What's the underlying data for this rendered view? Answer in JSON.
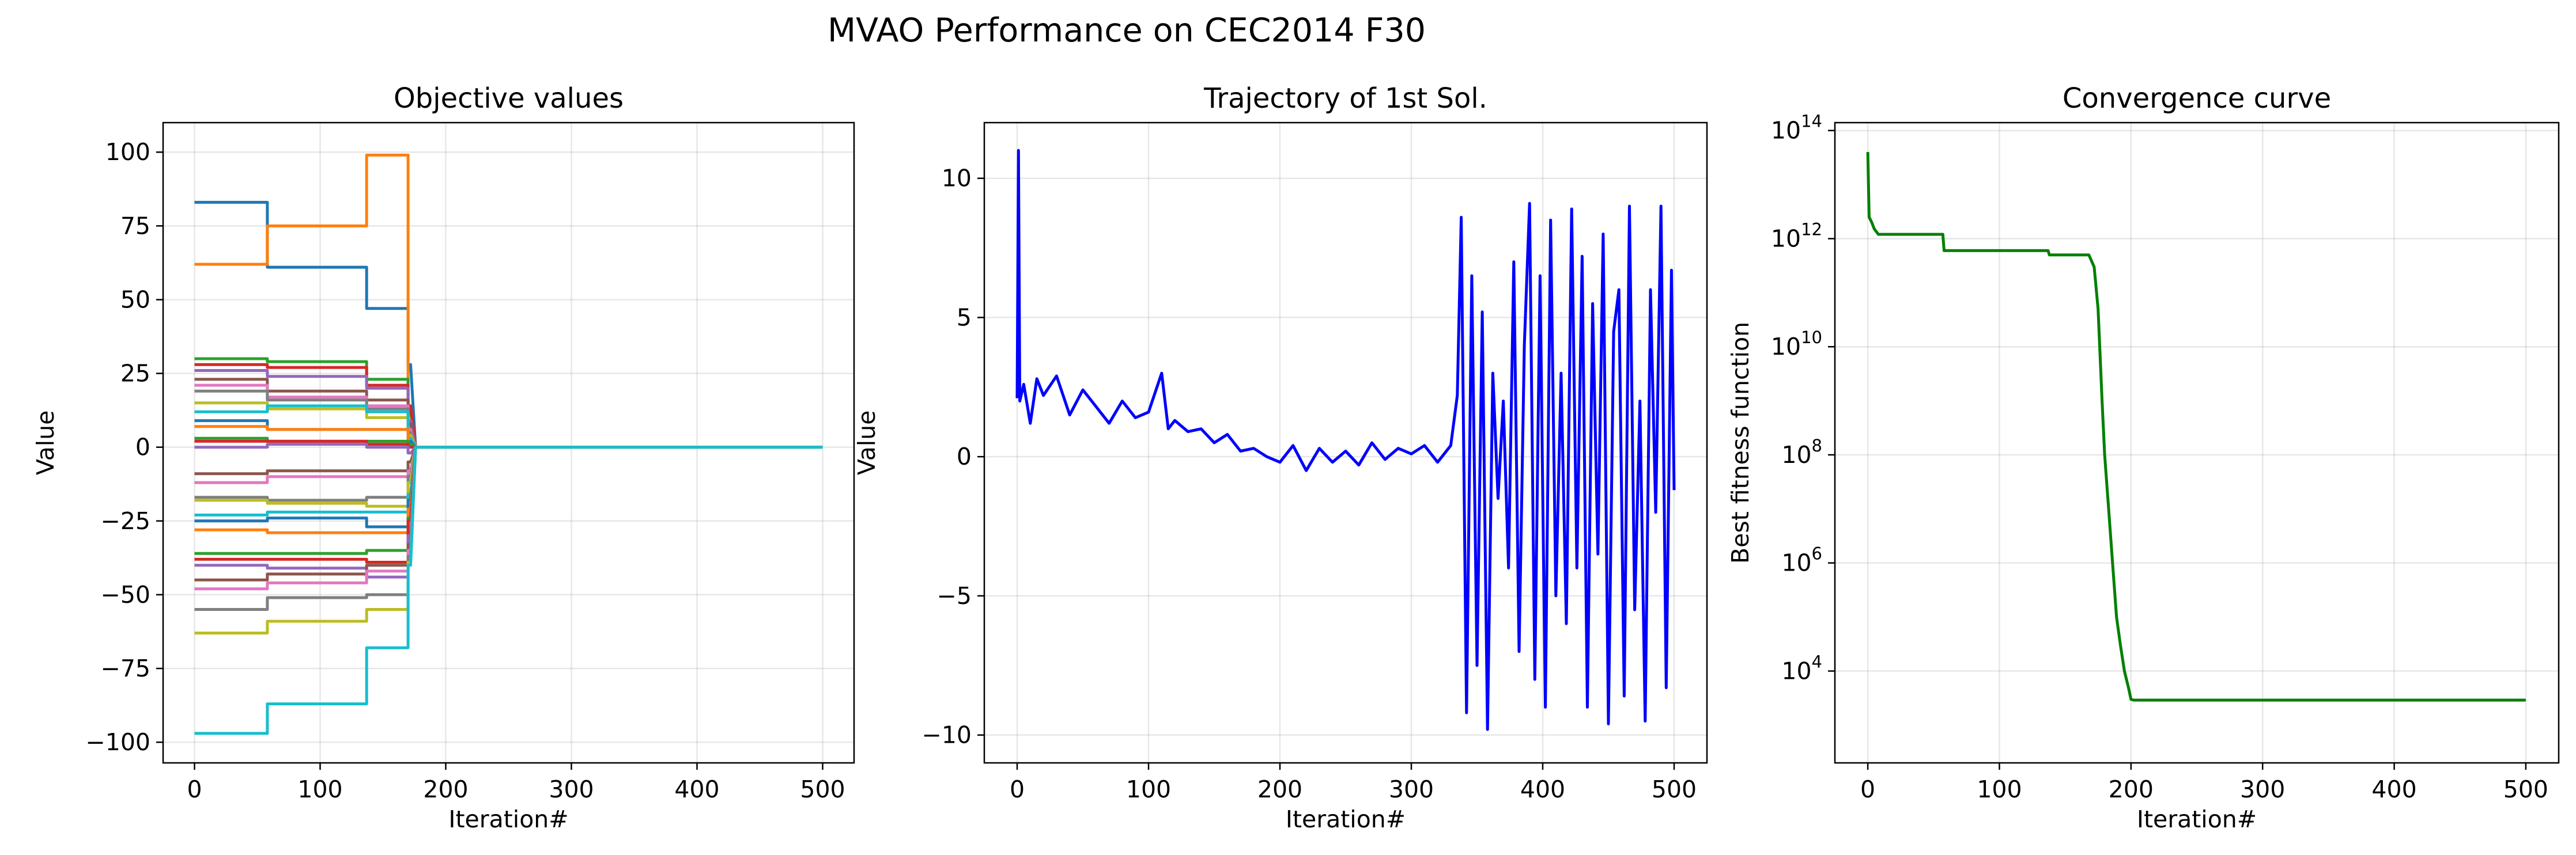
{
  "suptitle": "MVAO Performance on CEC2014 F30",
  "colors": {
    "tab10": [
      "#1f77b4",
      "#ff7f0e",
      "#2ca02c",
      "#d62728",
      "#9467bd",
      "#8c564b",
      "#e377c2",
      "#7f7f7f",
      "#bcbd22",
      "#17becf"
    ],
    "trajectory": "#0000ff",
    "convergence": "#008000"
  },
  "chart_data": [
    {
      "type": "line",
      "title": "Objective values",
      "xlabel": "Iteration#",
      "ylabel": "Value",
      "xlim": [
        -25,
        525
      ],
      "ylim": [
        -107,
        110
      ],
      "xticks": [
        0,
        100,
        200,
        300,
        400,
        500
      ],
      "yticks": [
        -100,
        -75,
        -50,
        -25,
        0,
        25,
        50,
        75,
        100
      ],
      "ytick_labels": [
        "−100",
        "−75",
        "−50",
        "−25",
        "0",
        "25",
        "50",
        "75",
        "100"
      ],
      "grid": true,
      "series_count": 30,
      "step_points": [
        0,
        58,
        137,
        170
      ],
      "final_value": 0,
      "series": [
        {
          "values": [
            83,
            61,
            47,
            28
          ]
        },
        {
          "values": [
            62,
            75,
            99,
            13
          ]
        },
        {
          "values": [
            30,
            29,
            23,
            12
          ]
        },
        {
          "values": [
            28,
            27,
            21,
            14
          ]
        },
        {
          "values": [
            26,
            24,
            20,
            9
          ]
        },
        {
          "values": [
            23,
            19,
            16,
            8
          ]
        },
        {
          "values": [
            21,
            17,
            14,
            6
          ]
        },
        {
          "values": [
            19,
            16,
            13,
            5
          ]
        },
        {
          "values": [
            15,
            13,
            10,
            4
          ]
        },
        {
          "values": [
            12,
            14,
            12,
            3
          ]
        },
        {
          "values": [
            9,
            6,
            6,
            2
          ]
        },
        {
          "values": [
            7,
            6,
            6,
            1
          ]
        },
        {
          "values": [
            3,
            2,
            2,
            1
          ]
        },
        {
          "values": [
            2,
            2,
            1,
            0
          ]
        },
        {
          "values": [
            0,
            1,
            0,
            -2
          ]
        },
        {
          "values": [
            -9,
            -8,
            -8,
            -5
          ]
        },
        {
          "values": [
            -12,
            -10,
            -10,
            -8
          ]
        },
        {
          "values": [
            -17,
            -18,
            -17,
            -10
          ]
        },
        {
          "values": [
            -18,
            -19,
            -20,
            -12
          ]
        },
        {
          "values": [
            -23,
            -22,
            -22,
            -16
          ]
        },
        {
          "values": [
            -25,
            -24,
            -27,
            -18
          ]
        },
        {
          "values": [
            -28,
            -29,
            -29,
            -21
          ]
        },
        {
          "values": [
            -36,
            -36,
            -35,
            -24
          ]
        },
        {
          "values": [
            -38,
            -38,
            -39,
            -25
          ]
        },
        {
          "values": [
            -40,
            -41,
            -44,
            -30
          ]
        },
        {
          "values": [
            -45,
            -43,
            -40,
            -33
          ]
        },
        {
          "values": [
            -48,
            -46,
            -42,
            -35
          ]
        },
        {
          "values": [
            -55,
            -51,
            -50,
            -37
          ]
        },
        {
          "values": [
            -63,
            -59,
            -55,
            -39
          ]
        },
        {
          "values": [
            -97,
            -87,
            -68,
            -40
          ]
        }
      ]
    },
    {
      "type": "line",
      "title": "Trajectory of 1st Sol.",
      "xlabel": "Iteration#",
      "ylabel": "Value",
      "xlim": [
        -25,
        525
      ],
      "ylim": [
        -11,
        12
      ],
      "xticks": [
        0,
        100,
        200,
        300,
        400,
        500
      ],
      "yticks": [
        -10,
        -5,
        0,
        5,
        10
      ],
      "ytick_labels": [
        "−10",
        "−5",
        "0",
        "5",
        "10"
      ],
      "grid": true,
      "x": [
        0,
        1,
        2,
        5,
        10,
        15,
        20,
        30,
        40,
        50,
        60,
        70,
        80,
        90,
        100,
        110,
        115,
        120,
        130,
        140,
        150,
        160,
        170,
        180,
        190,
        200,
        210,
        220,
        230,
        240,
        250,
        260,
        270,
        280,
        290,
        300,
        310,
        320,
        330,
        335,
        338,
        342,
        346,
        350,
        354,
        358,
        362,
        366,
        370,
        374,
        378,
        382,
        386,
        390,
        394,
        398,
        402,
        406,
        410,
        414,
        418,
        422,
        426,
        430,
        434,
        438,
        442,
        446,
        450,
        454,
        458,
        462,
        466,
        470,
        474,
        478,
        482,
        486,
        490,
        494,
        498,
        500
      ],
      "y": [
        2.1,
        11.0,
        2.0,
        2.6,
        1.2,
        2.8,
        2.2,
        2.9,
        1.5,
        2.4,
        1.8,
        1.2,
        2.0,
        1.4,
        1.6,
        3.0,
        1.0,
        1.3,
        0.9,
        1.0,
        0.5,
        0.8,
        0.2,
        0.3,
        0.0,
        -0.2,
        0.4,
        -0.5,
        0.3,
        -0.2,
        0.2,
        -0.3,
        0.5,
        -0.1,
        0.3,
        0.1,
        0.4,
        -0.2,
        0.4,
        2.2,
        8.6,
        -9.2,
        6.5,
        -7.5,
        5.2,
        -9.8,
        3.0,
        -1.5,
        2.0,
        -4.0,
        7.0,
        -7.0,
        4.0,
        9.1,
        -8.0,
        6.5,
        -9.0,
        8.5,
        -5.0,
        3.0,
        -6.0,
        8.9,
        -4.0,
        7.2,
        -9.0,
        5.5,
        -3.5,
        8.0,
        -9.6,
        4.5,
        6.0,
        -8.6,
        9.0,
        -5.5,
        2.0,
        -9.5,
        6.0,
        -2.0,
        9.0,
        -8.3,
        6.7,
        -1.2
      ]
    },
    {
      "type": "line",
      "title": "Convergence curve",
      "xlabel": "Iteration#",
      "ylabel": "Best fitness function",
      "xlim": [
        -25,
        525
      ],
      "ylim": [
        200,
        140000000000000
      ],
      "yscale": "log",
      "xticks": [
        0,
        100,
        200,
        300,
        400,
        500
      ],
      "yticks": [
        10000,
        1000000,
        100000000,
        10000000000,
        1000000000000,
        100000000000000
      ],
      "ytick_labels": [
        {
          "base": "10",
          "exp": "4"
        },
        {
          "base": "10",
          "exp": "6"
        },
        {
          "base": "10",
          "exp": "8"
        },
        {
          "base": "10",
          "exp": "10"
        },
        {
          "base": "10",
          "exp": "12"
        },
        {
          "base": "10",
          "exp": "14"
        }
      ],
      "grid": true,
      "x": [
        0,
        1,
        3,
        5,
        8,
        57,
        58,
        137,
        138,
        168,
        172,
        175,
        178,
        180,
        183,
        186,
        189,
        192,
        195,
        198,
        200,
        202,
        500
      ],
      "y": [
        40000000000000,
        2500000000000,
        2000000000000,
        1500000000000,
        1200000000000,
        1200000000000,
        600000000000,
        600000000000,
        500000000000,
        500000000000,
        300000000000,
        50000000000,
        1000000000,
        100000000,
        10000000,
        1000000,
        100000,
        30000,
        10000,
        5000,
        3000,
        2900,
        2900
      ]
    }
  ]
}
